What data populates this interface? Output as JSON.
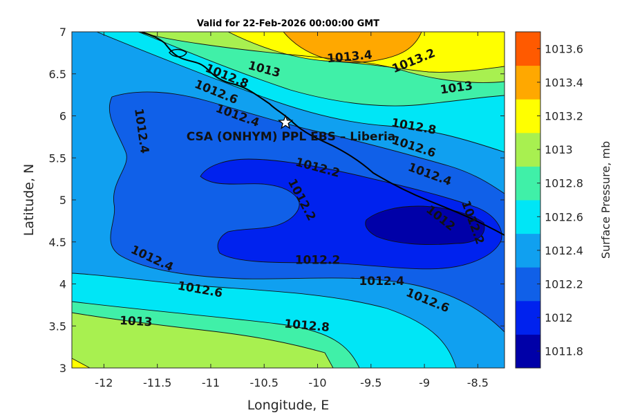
{
  "chart_data": {
    "type": "heatmap",
    "subtype": "filled-contour",
    "title": "Valid for 22-Feb-2026 00:00:00 GMT",
    "xlabel": "Longitude, E",
    "ylabel": "Latitude, N",
    "xlim": [
      -12.3,
      -8.25
    ],
    "ylim": [
      3,
      7
    ],
    "xticks": [
      "-12",
      "-11.5",
      "-11",
      "-10.5",
      "-10",
      "-9.5",
      "-9",
      "-8.5"
    ],
    "yticks": [
      "3",
      "3.5",
      "4",
      "4.5",
      "5",
      "5.5",
      "6",
      "6.5",
      "7"
    ],
    "colorbar": {
      "label": "Surface Pressure, mb",
      "levels": [
        "1011.8",
        "1012",
        "1012.2",
        "1012.4",
        "1012.6",
        "1012.8",
        "1013",
        "1013.2",
        "1013.4",
        "1013.6"
      ],
      "colors": [
        "#0000a8",
        "#0022ee",
        "#1060e8",
        "#10a0f0",
        "#00e6f6",
        "#40f0a8",
        "#a8f050",
        "#ffff00",
        "#ffa800",
        "#ff5a00"
      ]
    },
    "contour_labels": [
      {
        "text": "1013.4",
        "lon": -9.7,
        "lat": 6.7,
        "angle": -5
      },
      {
        "text": "1013.2",
        "lon": -9.1,
        "lat": 6.65,
        "angle": -22
      },
      {
        "text": "1013",
        "lon": -10.5,
        "lat": 6.55,
        "angle": 15
      },
      {
        "text": "1012.8",
        "lon": -10.85,
        "lat": 6.47,
        "angle": 22
      },
      {
        "text": "1013",
        "lon": -8.7,
        "lat": 6.33,
        "angle": -8
      },
      {
        "text": "1012.6",
        "lon": -10.95,
        "lat": 6.28,
        "angle": 22
      },
      {
        "text": "1012.4",
        "lon": -10.75,
        "lat": 6.0,
        "angle": 20
      },
      {
        "text": "1012.8",
        "lon": -9.1,
        "lat": 5.87,
        "angle": 10
      },
      {
        "text": "1012.6",
        "lon": -9.1,
        "lat": 5.63,
        "angle": 18
      },
      {
        "text": "1012.4",
        "lon": -8.95,
        "lat": 5.3,
        "angle": 20
      },
      {
        "text": "1012.4",
        "lon": -11.65,
        "lat": 5.82,
        "angle": 82
      },
      {
        "text": "1012.2",
        "lon": -10.0,
        "lat": 5.38,
        "angle": 15
      },
      {
        "text": "1012.2",
        "lon": -10.15,
        "lat": 5.0,
        "angle": 62
      },
      {
        "text": "1012",
        "lon": -8.85,
        "lat": 4.78,
        "angle": 38
      },
      {
        "text": "1012.2",
        "lon": -8.55,
        "lat": 4.73,
        "angle": 70
      },
      {
        "text": "1012.2",
        "lon": -10.0,
        "lat": 4.28,
        "angle": 0
      },
      {
        "text": "1012.4",
        "lon": -11.55,
        "lat": 4.3,
        "angle": 25
      },
      {
        "text": "1012.4",
        "lon": -9.4,
        "lat": 4.03,
        "angle": 0
      },
      {
        "text": "1012.6",
        "lon": -11.1,
        "lat": 3.93,
        "angle": 10
      },
      {
        "text": "1012.6",
        "lon": -8.97,
        "lat": 3.8,
        "angle": 22
      },
      {
        "text": "1013",
        "lon": -11.7,
        "lat": 3.55,
        "angle": 3
      },
      {
        "text": "1012.8",
        "lon": -10.1,
        "lat": 3.5,
        "angle": 5
      }
    ],
    "site": {
      "name": "CSA (ONHYM) PPL EBS  – Liberia",
      "lon": -10.3,
      "lat": 5.92
    }
  }
}
